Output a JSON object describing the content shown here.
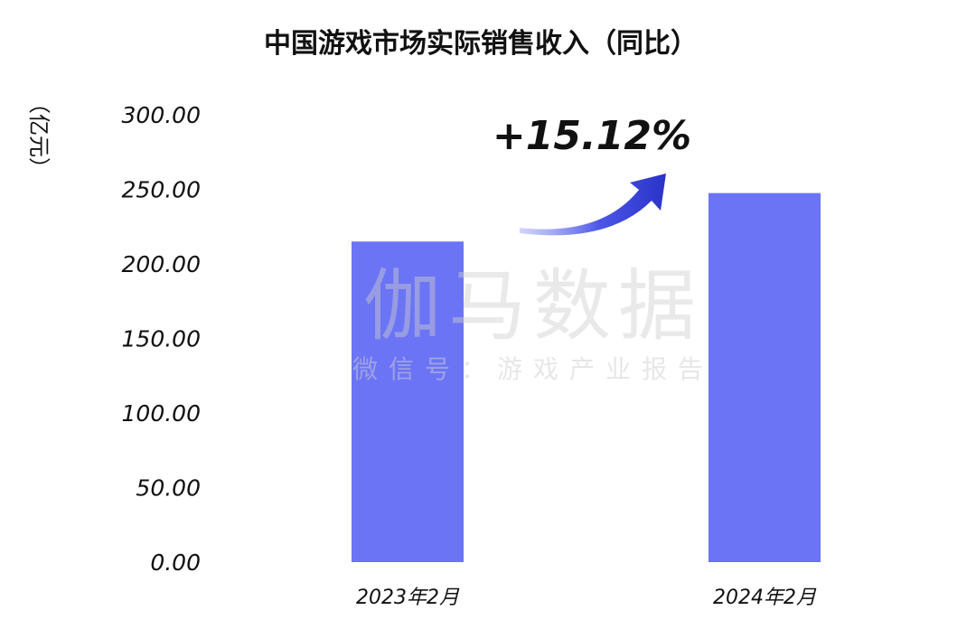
{
  "chart_data": {
    "type": "bar",
    "title": "中国游戏市场实际销售收入（同比）",
    "ylabel": "（亿元）",
    "categories": [
      "2023年2月",
      "2024年2月"
    ],
    "values": [
      215.0,
      247.5
    ],
    "ylim": [
      0,
      300
    ],
    "yticks": [
      "0.00",
      "50.00",
      "100.00",
      "150.00",
      "200.00",
      "250.00",
      "300.00"
    ],
    "grid": false,
    "bar_color": "#6b74f5",
    "annotation": {
      "text": "+15.12%",
      "arrow_color": "#2f3ad1"
    }
  },
  "watermark": {
    "main": "伽马数据",
    "sub": "微信号：游戏产业报告"
  }
}
